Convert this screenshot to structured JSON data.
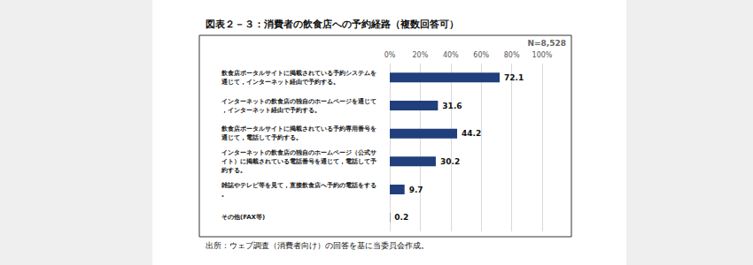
{
  "chart_data": {
    "type": "bar",
    "orientation": "horizontal",
    "title": "図表２－３：消費者の飲食店への予約経路（複数回答可）",
    "subtitle": "N=8,528",
    "source": "出所：ウェブ調査（消費者向け）の回答を基に当委員会作成。",
    "categories": [
      "飲食店ポータルサイトに掲載されている予約システムを通じて，インターネット経由で予約する。",
      "インターネットの飲食店の独自のホームページを通じて，インターネット経由で予約する。",
      "飲食店ポータルサイトに掲載されている予約専用番号を通じて，電話して予約する。",
      "インターネットの飲食店の独自のホームページ（公式サイト）に掲載されている電話番号を通じて，電話して予約する。",
      "雑誌やテレビ等を見て，直接飲食店へ予約の電話をする。",
      "その他(FAX等)"
    ],
    "values": [
      72.1,
      31.6,
      44.2,
      30.2,
      9.7,
      0.2
    ],
    "color": "#203f7c",
    "xlim": [
      0,
      100
    ],
    "xticks": [
      {
        "value": 0,
        "label": "0%"
      },
      {
        "value": 20,
        "label": "20%"
      },
      {
        "value": 40,
        "label": "40%"
      },
      {
        "value": 60,
        "label": "60%"
      },
      {
        "value": 80,
        "label": "80%"
      },
      {
        "value": 100,
        "label": "100%"
      }
    ],
    "grid": true,
    "data_labels": true
  }
}
